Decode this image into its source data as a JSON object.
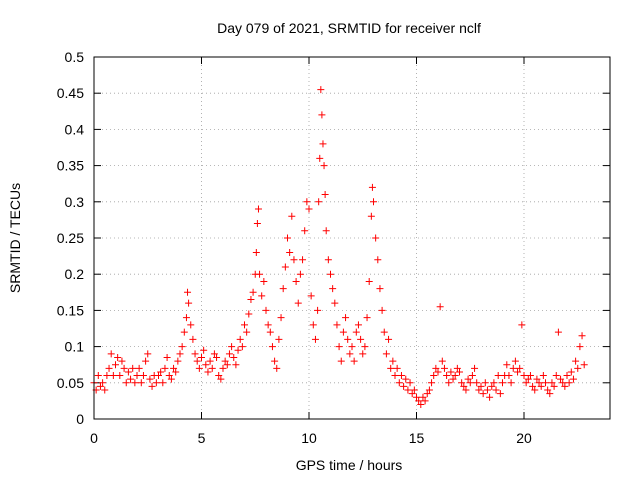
{
  "chart_data": {
    "type": "scatter",
    "title": "Day 079 of 2021, SRMTID for receiver nclf",
    "xlabel": "GPS time / hours",
    "ylabel": "SRMTID / TECUs",
    "xlim": [
      0,
      24
    ],
    "ylim": [
      0,
      0.5
    ],
    "x_ticks": [
      0,
      5,
      10,
      15,
      20
    ],
    "x_tick_labels": [
      "0",
      "5",
      "10",
      "15",
      "20"
    ],
    "y_ticks": [
      0,
      0.05,
      0.1,
      0.15,
      0.2,
      0.25,
      0.3,
      0.35,
      0.4,
      0.45,
      0.5
    ],
    "y_tick_labels": [
      "0",
      "0.05",
      "0.1",
      "0.15",
      "0.2",
      "0.25",
      "0.3",
      "0.35",
      "0.4",
      "0.45",
      "0.5"
    ],
    "grid": true,
    "marker": "+",
    "color": "#ff0000",
    "series": [
      {
        "points": [
          [
            0.0,
            0.05
          ],
          [
            0.1,
            0.04
          ],
          [
            0.2,
            0.06
          ],
          [
            0.3,
            0.045
          ],
          [
            0.4,
            0.05
          ],
          [
            0.5,
            0.04
          ],
          [
            0.6,
            0.06
          ],
          [
            0.7,
            0.07
          ],
          [
            0.8,
            0.09
          ],
          [
            0.9,
            0.06
          ],
          [
            1.0,
            0.075
          ],
          [
            1.1,
            0.085
          ],
          [
            1.2,
            0.06
          ],
          [
            1.3,
            0.08
          ],
          [
            1.4,
            0.07
          ],
          [
            1.5,
            0.05
          ],
          [
            1.6,
            0.065
          ],
          [
            1.7,
            0.055
          ],
          [
            1.8,
            0.07
          ],
          [
            1.9,
            0.05
          ],
          [
            2.0,
            0.06
          ],
          [
            2.1,
            0.07
          ],
          [
            2.2,
            0.05
          ],
          [
            2.3,
            0.06
          ],
          [
            2.4,
            0.08
          ],
          [
            2.5,
            0.09
          ],
          [
            2.6,
            0.055
          ],
          [
            2.7,
            0.045
          ],
          [
            2.8,
            0.06
          ],
          [
            2.9,
            0.05
          ],
          [
            3.0,
            0.06
          ],
          [
            3.1,
            0.065
          ],
          [
            3.2,
            0.05
          ],
          [
            3.3,
            0.07
          ],
          [
            3.4,
            0.085
          ],
          [
            3.5,
            0.06
          ],
          [
            3.6,
            0.055
          ],
          [
            3.7,
            0.07
          ],
          [
            3.8,
            0.065
          ],
          [
            3.9,
            0.08
          ],
          [
            4.0,
            0.09
          ],
          [
            4.1,
            0.1
          ],
          [
            4.2,
            0.12
          ],
          [
            4.3,
            0.14
          ],
          [
            4.35,
            0.175
          ],
          [
            4.4,
            0.16
          ],
          [
            4.5,
            0.13
          ],
          [
            4.6,
            0.11
          ],
          [
            4.7,
            0.09
          ],
          [
            4.8,
            0.08
          ],
          [
            4.9,
            0.07
          ],
          [
            5.0,
            0.085
          ],
          [
            5.1,
            0.095
          ],
          [
            5.2,
            0.075
          ],
          [
            5.3,
            0.065
          ],
          [
            5.4,
            0.08
          ],
          [
            5.5,
            0.07
          ],
          [
            5.6,
            0.09
          ],
          [
            5.7,
            0.085
          ],
          [
            5.8,
            0.06
          ],
          [
            5.9,
            0.055
          ],
          [
            6.0,
            0.07
          ],
          [
            6.1,
            0.08
          ],
          [
            6.2,
            0.075
          ],
          [
            6.3,
            0.09
          ],
          [
            6.4,
            0.1
          ],
          [
            6.5,
            0.085
          ],
          [
            6.6,
            0.075
          ],
          [
            6.7,
            0.095
          ],
          [
            6.8,
            0.11
          ],
          [
            6.9,
            0.1
          ],
          [
            7.0,
            0.13
          ],
          [
            7.1,
            0.12
          ],
          [
            7.2,
            0.145
          ],
          [
            7.3,
            0.165
          ],
          [
            7.4,
            0.175
          ],
          [
            7.5,
            0.2
          ],
          [
            7.55,
            0.23
          ],
          [
            7.6,
            0.27
          ],
          [
            7.65,
            0.29
          ],
          [
            7.7,
            0.2
          ],
          [
            7.8,
            0.17
          ],
          [
            7.9,
            0.19
          ],
          [
            8.0,
            0.15
          ],
          [
            8.1,
            0.13
          ],
          [
            8.2,
            0.12
          ],
          [
            8.3,
            0.1
          ],
          [
            8.4,
            0.08
          ],
          [
            8.5,
            0.07
          ],
          [
            8.6,
            0.11
          ],
          [
            8.7,
            0.14
          ],
          [
            8.8,
            0.18
          ],
          [
            8.9,
            0.21
          ],
          [
            9.0,
            0.25
          ],
          [
            9.1,
            0.23
          ],
          [
            9.2,
            0.28
          ],
          [
            9.3,
            0.22
          ],
          [
            9.4,
            0.19
          ],
          [
            9.5,
            0.16
          ],
          [
            9.6,
            0.2
          ],
          [
            9.7,
            0.22
          ],
          [
            9.8,
            0.26
          ],
          [
            9.9,
            0.3
          ],
          [
            10.0,
            0.29
          ],
          [
            10.1,
            0.17
          ],
          [
            10.2,
            0.13
          ],
          [
            10.3,
            0.11
          ],
          [
            10.4,
            0.15
          ],
          [
            10.45,
            0.3
          ],
          [
            10.5,
            0.36
          ],
          [
            10.55,
            0.455
          ],
          [
            10.6,
            0.42
          ],
          [
            10.65,
            0.38
          ],
          [
            10.7,
            0.35
          ],
          [
            10.75,
            0.31
          ],
          [
            10.8,
            0.26
          ],
          [
            10.9,
            0.22
          ],
          [
            11.0,
            0.2
          ],
          [
            11.1,
            0.18
          ],
          [
            11.2,
            0.16
          ],
          [
            11.3,
            0.13
          ],
          [
            11.4,
            0.1
          ],
          [
            11.5,
            0.08
          ],
          [
            11.6,
            0.12
          ],
          [
            11.7,
            0.14
          ],
          [
            11.8,
            0.11
          ],
          [
            11.9,
            0.09
          ],
          [
            12.0,
            0.1
          ],
          [
            12.1,
            0.08
          ],
          [
            12.2,
            0.12
          ],
          [
            12.3,
            0.13
          ],
          [
            12.4,
            0.11
          ],
          [
            12.5,
            0.09
          ],
          [
            12.6,
            0.1
          ],
          [
            12.7,
            0.14
          ],
          [
            12.8,
            0.19
          ],
          [
            12.9,
            0.28
          ],
          [
            12.95,
            0.32
          ],
          [
            13.0,
            0.3
          ],
          [
            13.1,
            0.25
          ],
          [
            13.2,
            0.22
          ],
          [
            13.3,
            0.18
          ],
          [
            13.4,
            0.15
          ],
          [
            13.5,
            0.12
          ],
          [
            13.6,
            0.09
          ],
          [
            13.7,
            0.11
          ],
          [
            13.8,
            0.07
          ],
          [
            13.9,
            0.08
          ],
          [
            14.0,
            0.06
          ],
          [
            14.1,
            0.07
          ],
          [
            14.2,
            0.05
          ],
          [
            14.3,
            0.06
          ],
          [
            14.4,
            0.045
          ],
          [
            14.5,
            0.055
          ],
          [
            14.6,
            0.04
          ],
          [
            14.7,
            0.05
          ],
          [
            14.8,
            0.035
          ],
          [
            14.9,
            0.04
          ],
          [
            15.0,
            0.03
          ],
          [
            15.1,
            0.025
          ],
          [
            15.2,
            0.02
          ],
          [
            15.3,
            0.03
          ],
          [
            15.4,
            0.025
          ],
          [
            15.5,
            0.035
          ],
          [
            15.6,
            0.04
          ],
          [
            15.7,
            0.05
          ],
          [
            15.8,
            0.06
          ],
          [
            15.9,
            0.07
          ],
          [
            16.0,
            0.065
          ],
          [
            16.1,
            0.155
          ],
          [
            16.2,
            0.08
          ],
          [
            16.3,
            0.07
          ],
          [
            16.4,
            0.06
          ],
          [
            16.5,
            0.05
          ],
          [
            16.6,
            0.065
          ],
          [
            16.7,
            0.055
          ],
          [
            16.8,
            0.06
          ],
          [
            16.9,
            0.07
          ],
          [
            17.0,
            0.065
          ],
          [
            17.1,
            0.05
          ],
          [
            17.2,
            0.045
          ],
          [
            17.3,
            0.04
          ],
          [
            17.4,
            0.055
          ],
          [
            17.5,
            0.05
          ],
          [
            17.6,
            0.06
          ],
          [
            17.7,
            0.07
          ],
          [
            17.8,
            0.05
          ],
          [
            17.9,
            0.04
          ],
          [
            18.0,
            0.045
          ],
          [
            18.1,
            0.035
          ],
          [
            18.2,
            0.05
          ],
          [
            18.3,
            0.04
          ],
          [
            18.4,
            0.03
          ],
          [
            18.5,
            0.045
          ],
          [
            18.6,
            0.05
          ],
          [
            18.7,
            0.04
          ],
          [
            18.8,
            0.06
          ],
          [
            18.9,
            0.035
          ],
          [
            19.0,
            0.05
          ],
          [
            19.1,
            0.06
          ],
          [
            19.2,
            0.075
          ],
          [
            19.3,
            0.06
          ],
          [
            19.4,
            0.05
          ],
          [
            19.5,
            0.07
          ],
          [
            19.6,
            0.08
          ],
          [
            19.7,
            0.065
          ],
          [
            19.8,
            0.07
          ],
          [
            19.9,
            0.13
          ],
          [
            20.0,
            0.06
          ],
          [
            20.1,
            0.05
          ],
          [
            20.2,
            0.055
          ],
          [
            20.3,
            0.06
          ],
          [
            20.4,
            0.045
          ],
          [
            20.5,
            0.04
          ],
          [
            20.6,
            0.055
          ],
          [
            20.7,
            0.05
          ],
          [
            20.8,
            0.045
          ],
          [
            20.9,
            0.06
          ],
          [
            21.0,
            0.05
          ],
          [
            21.1,
            0.04
          ],
          [
            21.2,
            0.035
          ],
          [
            21.3,
            0.05
          ],
          [
            21.4,
            0.045
          ],
          [
            21.5,
            0.06
          ],
          [
            21.6,
            0.12
          ],
          [
            21.7,
            0.055
          ],
          [
            21.8,
            0.05
          ],
          [
            21.9,
            0.045
          ],
          [
            22.0,
            0.06
          ],
          [
            22.1,
            0.05
          ],
          [
            22.2,
            0.065
          ],
          [
            22.3,
            0.055
          ],
          [
            22.4,
            0.08
          ],
          [
            22.5,
            0.07
          ],
          [
            22.6,
            0.1
          ],
          [
            22.7,
            0.115
          ],
          [
            22.8,
            0.075
          ]
        ]
      }
    ]
  }
}
